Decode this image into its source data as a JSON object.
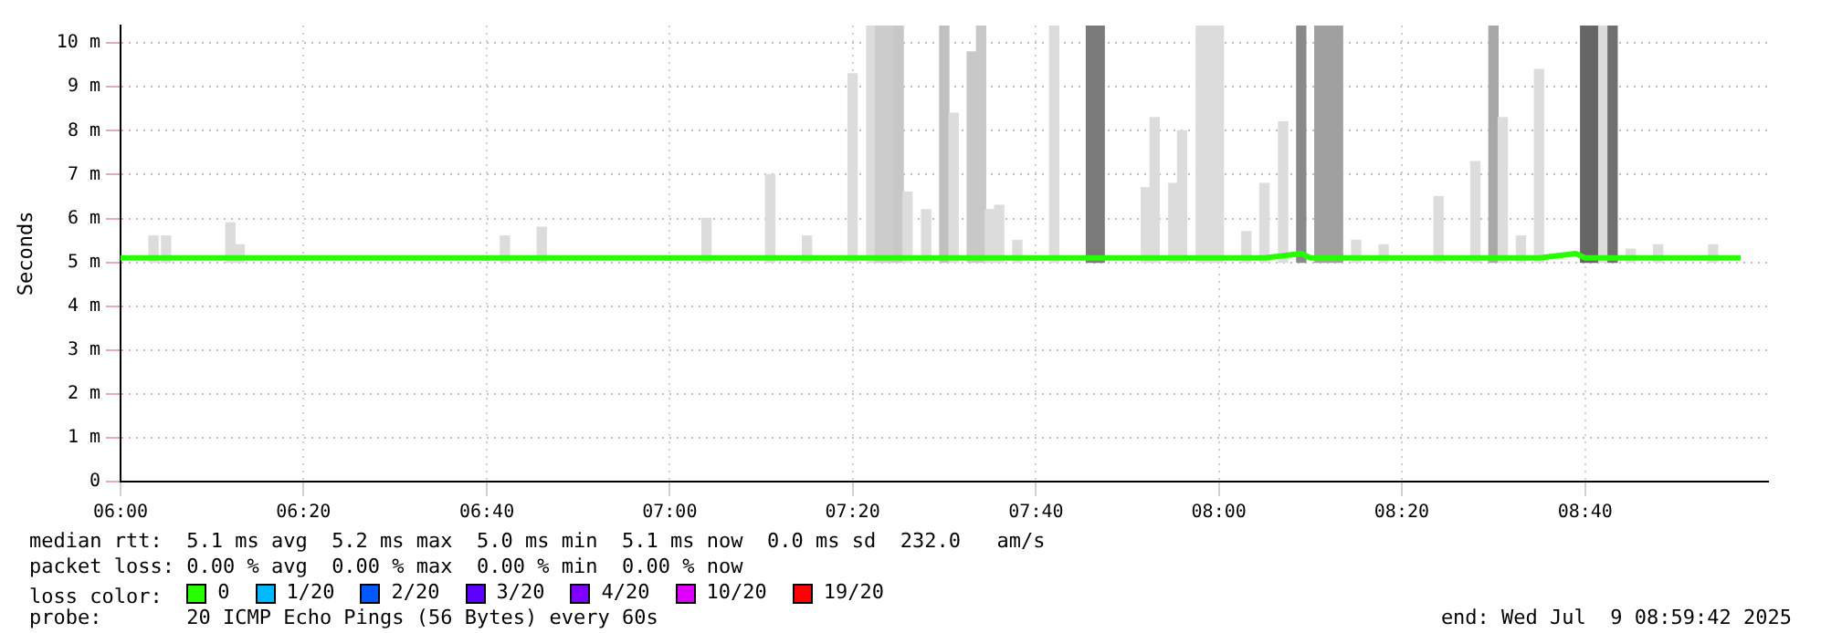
{
  "chart_data": {
    "type": "line",
    "ylabel": "Seconds",
    "xlim": [
      6,
      9
    ],
    "xticks": [
      {
        "value": 6,
        "label": "06:00"
      },
      {
        "value": 6.333,
        "label": "06:20"
      },
      {
        "value": 6.667,
        "label": "06:40"
      },
      {
        "value": 7,
        "label": "07:00"
      },
      {
        "value": 7.333,
        "label": "07:20"
      },
      {
        "value": 7.667,
        "label": "07:40"
      },
      {
        "value": 8,
        "label": "08:00"
      },
      {
        "value": 8.333,
        "label": "08:20"
      },
      {
        "value": 8.667,
        "label": "08:40"
      }
    ],
    "ylim": [
      0,
      10.4
    ],
    "yticks": [
      0,
      {
        "value": 1,
        "label": "1 m"
      },
      {
        "value": 2,
        "label": "2 m"
      },
      {
        "value": 3,
        "label": "3 m"
      },
      {
        "value": 4,
        "label": "4 m"
      },
      {
        "value": 5,
        "label": "5 m"
      },
      {
        "value": 6,
        "label": "6 m"
      },
      {
        "value": 7,
        "label": "7 m"
      },
      {
        "value": 8,
        "label": "8 m"
      },
      {
        "value": 9,
        "label": "9 m"
      },
      {
        "value": 10,
        "label": "10 m"
      }
    ],
    "grid": true,
    "legend": "bottom",
    "legend_title": "loss color:",
    "line_style": "solid",
    "marker": "none",
    "series": [
      {
        "type": "bar",
        "x": [
          6.06,
          6.083,
          6.2,
          6.217,
          6.7,
          6.767,
          7.067,
          7.183,
          7.25,
          7.333,
          7.367,
          7.383,
          7.4,
          7.417,
          7.433,
          7.467,
          7.5,
          7.517,
          7.55,
          7.567,
          7.583,
          7.6,
          7.633,
          7.7,
          7.767,
          7.783,
          7.867,
          7.883,
          7.917,
          7.933,
          7.967,
          7.983,
          8.0,
          8.05,
          8.083,
          8.117,
          8.15,
          8.183,
          8.2,
          8.217,
          8.25,
          8.3,
          8.4,
          8.467,
          8.5,
          8.517,
          8.55,
          8.583,
          8.667,
          8.683,
          8.7,
          8.717,
          8.75,
          8.8,
          8.9
        ],
        "base": [
          5,
          5,
          5,
          5,
          5,
          5,
          5,
          5,
          5,
          5,
          5,
          5,
          5,
          5,
          5,
          5,
          5,
          5,
          5,
          5,
          5,
          5,
          5,
          5,
          5,
          5,
          5,
          5,
          5,
          5,
          5,
          5,
          5,
          5,
          5,
          5,
          5,
          5,
          5,
          5,
          5,
          5,
          5,
          5,
          5,
          5,
          5,
          5,
          5,
          5,
          5,
          5,
          5,
          5,
          5
        ],
        "values": [
          0.6,
          0.6,
          0.9,
          0.4,
          0.6,
          0.8,
          1,
          2,
          0.6,
          4.3,
          5.4,
          5.4,
          5.4,
          5.4,
          1.6,
          1.2,
          5.4,
          3.4,
          4.8,
          5.4,
          1.2,
          1.3,
          0.5,
          5.4,
          5.4,
          5.4,
          1.7,
          3.3,
          1.8,
          3,
          5.4,
          5.4,
          5.4,
          0.7,
          1.8,
          3.2,
          5.4,
          5.4,
          5.4,
          5.4,
          0.5,
          0.4,
          1.5,
          2.3,
          5.4,
          3.3,
          0.6,
          4.4,
          5.4,
          5.4,
          5.4,
          5.4,
          0.3,
          0.4,
          0.4
        ],
        "colors": [
          "#dcdcdc",
          "#dcdcdc",
          "#dcdcdc",
          "#dcdcdc",
          "#dcdcdc",
          "#dcdcdc",
          "#dcdcdc",
          "#dcdcdc",
          "#dcdcdc",
          "#dcdcdc",
          "#dcdcdc",
          "#cccccc",
          "#cccccc",
          "#c8c8c8",
          "#dcdcdc",
          "#dcdcdc",
          "#c0c0c0",
          "#dcdcdc",
          "#c8c8c8",
          "#c8c8c8",
          "#dcdcdc",
          "#dcdcdc",
          "#dcdcdc",
          "#dcdcdc",
          "#7a7a7a",
          "#7a7a7a",
          "#dcdcdc",
          "#dcdcdc",
          "#dcdcdc",
          "#dcdcdc",
          "#dcdcdc",
          "#dcdcdc",
          "#dcdcdc",
          "#dcdcdc",
          "#dcdcdc",
          "#dcdcdc",
          "#8a8a8a",
          "#a0a0a0",
          "#a0a0a0",
          "#a0a0a0",
          "#dcdcdc",
          "#dcdcdc",
          "#dcdcdc",
          "#dcdcdc",
          "#a8a8a8",
          "#dcdcdc",
          "#dcdcdc",
          "#dcdcdc",
          "#666666",
          "#666666",
          "#dcdcdc",
          "#707070",
          "#dcdcdc",
          "#dcdcdc",
          "#dcdcdc"
        ]
      },
      {
        "name": "0",
        "color": "#26ff00",
        "x": [
          6,
          6.083,
          6.167,
          6.25,
          6.333,
          6.417,
          6.5,
          6.583,
          6.667,
          6.75,
          6.833,
          6.917,
          7,
          7.083,
          7.167,
          7.25,
          7.333,
          7.417,
          7.5,
          7.583,
          7.667,
          7.75,
          7.833,
          7.917,
          8,
          8.083,
          8.15,
          8.167,
          8.25,
          8.333,
          8.417,
          8.5,
          8.583,
          8.65,
          8.667,
          8.75,
          8.833,
          8.95
        ],
        "values": [
          5.1,
          5.1,
          5.1,
          5.1,
          5.1,
          5.1,
          5.1,
          5.1,
          5.1,
          5.1,
          5.1,
          5.1,
          5.1,
          5.1,
          5.1,
          5.1,
          5.1,
          5.1,
          5.1,
          5.1,
          5.1,
          5.1,
          5.1,
          5.1,
          5.1,
          5.1,
          5.2,
          5.1,
          5.1,
          5.1,
          5.1,
          5.1,
          5.1,
          5.2,
          5.1,
          5.1,
          5.1,
          5.1
        ]
      },
      {
        "name": "1/20",
        "color": "#00b8ff"
      },
      {
        "name": "2/20",
        "color": "#0059ff"
      },
      {
        "name": "3/20",
        "color": "#5e00ff"
      },
      {
        "name": "4/20",
        "color": "#7e00ff"
      },
      {
        "name": "10/20",
        "color": "#dd00ff"
      },
      {
        "name": "19/20",
        "color": "#ff0000"
      }
    ],
    "annotations": [
      "median rtt:  5.1 ms avg  5.2 ms max  5.0 ms min  5.1 ms now  0.0 ms sd  232.0   am/s",
      "packet loss: 0.00 % avg  0.00 % max  0.00 % min  0.00 % now",
      "probe:       20 ICMP Echo Pings (56 Bytes) every 60s",
      "end: Wed Jul  9 08:59:42 2025"
    ]
  }
}
